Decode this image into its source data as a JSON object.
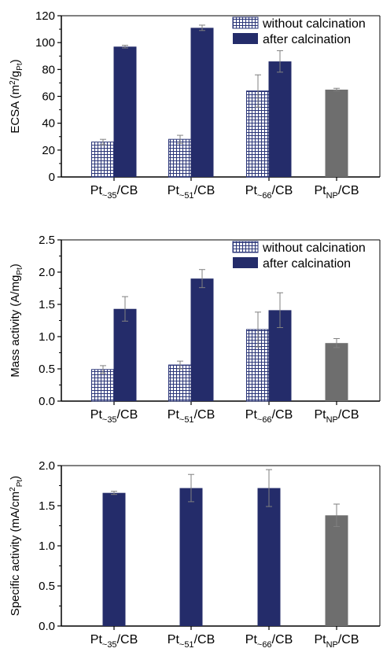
{
  "colors": {
    "navy": "#242c6a",
    "gray": "#6e6e6e",
    "hatch_line": "#2a3578",
    "error_bar": "#808080"
  },
  "chart_data": [
    {
      "type": "bar",
      "ylabel": "ECSA (m²/g_Pt)",
      "ylabel_parts": {
        "main": "ECSA (m",
        "sup": "2",
        "mid": "/g",
        "sub": "Pt",
        "end": ")"
      },
      "ylim": [
        0,
        120
      ],
      "yticks": [
        "0",
        "20",
        "40",
        "60",
        "80",
        "100",
        "120"
      ],
      "categories": [
        {
          "base": "Pt",
          "sub": "~35",
          "rest": "/CB"
        },
        {
          "base": "Pt",
          "sub": "~51",
          "rest": "/CB"
        },
        {
          "base": "Pt",
          "sub": "~66",
          "rest": "/CB"
        },
        {
          "base": "Pt",
          "sub": "NP",
          "rest": "/CB"
        }
      ],
      "series": [
        {
          "name": "without calcination",
          "values": [
            26,
            28,
            64,
            null
          ],
          "errors": [
            2,
            3,
            12,
            null
          ]
        },
        {
          "name": "after calcination",
          "values": [
            97,
            111,
            86,
            null
          ],
          "errors": [
            1,
            2,
            8,
            null
          ]
        },
        {
          "name": "",
          "values": [
            null,
            null,
            null,
            65
          ],
          "errors": [
            null,
            null,
            null,
            1
          ]
        }
      ],
      "legend": {
        "position": "top-right",
        "entries": [
          "without calcination",
          "after calcination"
        ]
      }
    },
    {
      "type": "bar",
      "ylabel": "Mass activity (A/mg_Pt)",
      "ylabel_parts": {
        "main": "Mass activity (A/mg",
        "sup": "",
        "mid": "",
        "sub": "Pt",
        "end": ")"
      },
      "ylim": [
        0,
        2.5
      ],
      "yticks": [
        "0.0",
        "0.5",
        "1.0",
        "1.5",
        "2.0",
        "2.5"
      ],
      "categories": [
        {
          "base": "Pt",
          "sub": "~35",
          "rest": "/CB"
        },
        {
          "base": "Pt",
          "sub": "~51",
          "rest": "/CB"
        },
        {
          "base": "Pt",
          "sub": "~66",
          "rest": "/CB"
        },
        {
          "base": "Pt",
          "sub": "NP",
          "rest": "/CB"
        }
      ],
      "series": [
        {
          "name": "without calcination",
          "values": [
            0.49,
            0.56,
            1.11,
            null
          ],
          "errors": [
            0.06,
            0.06,
            0.27,
            null
          ]
        },
        {
          "name": "after calcination",
          "values": [
            1.43,
            1.9,
            1.41,
            null
          ],
          "errors": [
            0.19,
            0.14,
            0.27,
            null
          ]
        },
        {
          "name": "",
          "values": [
            null,
            null,
            null,
            0.9
          ],
          "errors": [
            null,
            null,
            null,
            0.07
          ]
        }
      ],
      "legend": {
        "position": "top-right",
        "entries": [
          "without calcination",
          "after calcination"
        ]
      }
    },
    {
      "type": "bar",
      "ylabel": "Specific activity (mA/cm²_Pt)",
      "ylabel_parts": {
        "main": "Specific activity (mA/cm",
        "sup": "2",
        "mid": "",
        "sub": "Pt",
        "end": ")"
      },
      "ylim": [
        0,
        2.0
      ],
      "yticks": [
        "0.0",
        "0.5",
        "1.0",
        "1.5",
        "2.0"
      ],
      "categories": [
        {
          "base": "Pt",
          "sub": "~35",
          "rest": "/CB"
        },
        {
          "base": "Pt",
          "sub": "~51",
          "rest": "/CB"
        },
        {
          "base": "Pt",
          "sub": "~66",
          "rest": "/CB"
        },
        {
          "base": "Pt",
          "sub": "NP",
          "rest": "/CB"
        }
      ],
      "series": [
        {
          "name": "",
          "values": [
            1.66,
            1.72,
            1.72,
            null
          ],
          "errors": [
            0.02,
            0.17,
            0.23,
            null
          ]
        },
        {
          "name": "",
          "values": [
            null,
            null,
            null,
            1.38
          ],
          "errors": [
            null,
            null,
            null,
            0.14
          ]
        }
      ],
      "legend": null
    }
  ]
}
